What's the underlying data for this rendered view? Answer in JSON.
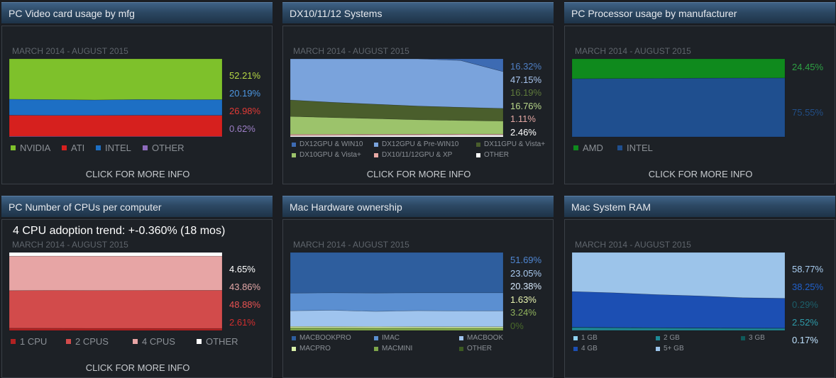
{
  "panels": [
    {
      "id": "video",
      "title": "PC Video card usage by mfg",
      "period": "MARCH 2014 - AUGUST 2015",
      "more_info": "CLICK FOR MORE INFO",
      "legend_size": "large",
      "legend_cols": 4,
      "legend_x": [
        0,
        72,
        120,
        186
      ],
      "percent_labels": [
        {
          "text": "52.21%",
          "color": "#b6d845"
        },
        {
          "text": "20.19%",
          "color": "#4c96e0"
        },
        {
          "text": "26.98%",
          "color": "#e03a36"
        },
        {
          "text": "0.62%",
          "color": "#9d7fc6"
        }
      ],
      "legend": [
        {
          "label": "NVIDIA",
          "color": "#7ec12b"
        },
        {
          "label": "ATI",
          "color": "#d6201e"
        },
        {
          "label": "INTEL",
          "color": "#1d6fc4"
        },
        {
          "label": "OTHER",
          "color": "#8e6bbd"
        }
      ]
    },
    {
      "id": "dx",
      "title": "DX10/11/12 Systems",
      "period": "MARCH 2014 - AUGUST 2015",
      "more_info": "CLICK FOR MORE INFO",
      "legend_size": "small",
      "legend_cols": 3,
      "legend_x": [
        0,
        116,
        260
      ],
      "percent_labels": [
        {
          "text": "16.32%",
          "color": "#4f7fc4"
        },
        {
          "text": "47.15%",
          "color": "#a9c6ef"
        },
        {
          "text": "16.19%",
          "color": "#5f7a3c"
        },
        {
          "text": "16.76%",
          "color": "#b9d88a"
        },
        {
          "text": "1.11%",
          "color": "#e2a6a2"
        },
        {
          "text": "2.46%",
          "color": "#ffffff"
        }
      ],
      "legend": [
        {
          "label": "DX12GPU & WIN10",
          "color": "#3d6bb3"
        },
        {
          "label": "DX12GPU & Pre-WIN10",
          "color": "#7aa3dc"
        },
        {
          "label": "DX11GPU & Vista+",
          "color": "#4a5e2c"
        },
        {
          "label": "DX10GPU & Vista+",
          "color": "#9cc36b"
        },
        {
          "label": "DX10/11/12GPU & XP",
          "color": "#e8a9a5"
        },
        {
          "label": "OTHER",
          "color": "#ffffff"
        }
      ]
    },
    {
      "id": "cpu-mfg",
      "title": "PC Processor usage by manufacturer",
      "period": "MARCH 2014 - AUGUST 2015",
      "more_info": "CLICK FOR MORE INFO",
      "legend_size": "large",
      "legend_cols": 2,
      "legend_x": [
        0,
        62
      ],
      "percent_labels": [
        {
          "text": "24.45%",
          "color": "#2ea043"
        },
        {
          "text": "75.55%",
          "color": "#224e86"
        }
      ],
      "legend": [
        {
          "label": "AMD",
          "color": "#0f8a1d"
        },
        {
          "label": "INTEL",
          "color": "#1f4f8f"
        }
      ]
    },
    {
      "id": "cpus",
      "title": "PC Number of CPUs per computer",
      "trend": "4 CPU adoption trend: +-0.360% (18 mos)",
      "period": "MARCH 2014 - AUGUST 2015",
      "more_info": "CLICK FOR MORE INFO",
      "legend_size": "large",
      "legend_cols": 4,
      "legend_x": [
        0,
        78,
        172,
        262
      ],
      "percent_labels": [
        {
          "text": "4.65%",
          "color": "#ffffff"
        },
        {
          "text": "43.86%",
          "color": "#e3a8a8"
        },
        {
          "text": "48.88%",
          "color": "#e85252"
        },
        {
          "text": "2.61%",
          "color": "#d12f2f"
        }
      ],
      "legend": [
        {
          "label": "1 CPU",
          "color": "#b22222"
        },
        {
          "label": "2 CPUS",
          "color": "#d24b4b"
        },
        {
          "label": "4 CPUS",
          "color": "#e7a5a5"
        },
        {
          "label": "OTHER",
          "color": "#ffffff"
        }
      ]
    },
    {
      "id": "mac-hw",
      "title": "Mac Hardware ownership",
      "period": "MARCH 2014 - AUGUST 2015",
      "legend_size": "small",
      "legend_cols": 3,
      "legend_x": [
        0,
        116,
        236
      ],
      "percent_labels": [
        {
          "text": "51.69%",
          "color": "#4f86d1"
        },
        {
          "text": "23.05%",
          "color": "#a9c9ef"
        },
        {
          "text": "20.38%",
          "color": "#d6e8fb"
        },
        {
          "text": "1.63%",
          "color": "#e8f4b0"
        },
        {
          "text": "3.24%",
          "color": "#8fb15c"
        },
        {
          "text": "0%",
          "color": "#4a6a2a"
        }
      ],
      "legend": [
        {
          "label": "MACBOOKPRO",
          "color": "#2e5e9e"
        },
        {
          "label": "IMAC",
          "color": "#5b8fd1"
        },
        {
          "label": "MACBOOK",
          "color": "#9fc4ee"
        },
        {
          "label": "MACPRO",
          "color": "#d8efa8"
        },
        {
          "label": "MACMINI",
          "color": "#7ea64a"
        },
        {
          "label": "OTHER",
          "color": "#3c5a22"
        }
      ]
    },
    {
      "id": "mac-ram",
      "title": "Mac System RAM",
      "period": "MARCH 2014 - AUGUST 2015",
      "legend_size": "small",
      "legend_cols": 3,
      "legend_x": [
        0,
        116,
        236
      ],
      "percent_labels": [
        {
          "text": "58.77%",
          "color": "#a9cdf0"
        },
        {
          "text": "38.25%",
          "color": "#2160c9"
        },
        {
          "text": "0.29%",
          "color": "#1d5f6a"
        },
        {
          "text": "2.52%",
          "color": "#2e9aa8"
        },
        {
          "text": "0.17%",
          "color": "#bfe3ff"
        }
      ],
      "legend": [
        {
          "label": "1 GB",
          "color": "#8fd1f0"
        },
        {
          "label": "2 GB",
          "color": "#1d8a96"
        },
        {
          "label": "3 GB",
          "color": "#0f5a5a"
        },
        {
          "label": "4 GB",
          "color": "#1c4fb3"
        },
        {
          "label": "5+ GB",
          "color": "#9cc4ea"
        }
      ]
    }
  ],
  "chart_data": [
    {
      "type": "area",
      "title": "PC Video card usage by mfg",
      "x_range": [
        "MARCH 2014",
        "AUGUST 2015"
      ],
      "stack_order": [
        "OTHER",
        "ATI",
        "INTEL",
        "NVIDIA"
      ],
      "series": [
        {
          "name": "OTHER",
          "color": "#8e6bbd",
          "values": [
            0.8,
            0.7,
            0.6,
            0.6,
            0.6,
            0.62
          ]
        },
        {
          "name": "ATI",
          "color": "#d6201e",
          "values": [
            27,
            26.8,
            26.9,
            27.1,
            27.0,
            26.98
          ]
        },
        {
          "name": "INTEL",
          "color": "#1d6fc4",
          "values": [
            20.5,
            20.3,
            19.8,
            20.2,
            20.1,
            20.19
          ]
        },
        {
          "name": "NVIDIA",
          "color": "#7ec12b",
          "values": [
            51.7,
            52.2,
            52.7,
            52.1,
            52.3,
            52.21
          ]
        }
      ],
      "ylim": [
        0,
        100
      ]
    },
    {
      "type": "area",
      "title": "DX10/11/12 Systems",
      "x_range": [
        "MARCH 2014",
        "AUGUST 2015"
      ],
      "stack_order": [
        "OTHER",
        "DX10/11/12GPU & XP",
        "DX10GPU & Vista+",
        "DX11GPU & Vista+",
        "DX12GPU & Pre-WIN10",
        "DX12GPU & WIN10"
      ],
      "series": [
        {
          "name": "OTHER",
          "color": "#ffffff",
          "values": [
            1.5,
            1.7,
            2.0,
            2.2,
            2.4,
            2.46
          ]
        },
        {
          "name": "DX10/11/12GPU & XP",
          "color": "#e8a9a5",
          "values": [
            1.8,
            1.6,
            1.4,
            1.3,
            1.2,
            1.11
          ]
        },
        {
          "name": "DX10GPU & Vista+",
          "color": "#9cc36b",
          "values": [
            23,
            21.5,
            20,
            18.5,
            17.5,
            16.76
          ]
        },
        {
          "name": "DX11GPU & Vista+",
          "color": "#4a5e2c",
          "values": [
            21,
            19.5,
            18.5,
            17.5,
            16.8,
            16.19
          ]
        },
        {
          "name": "DX12GPU & Pre-WIN10",
          "color": "#7aa3dc",
          "values": [
            52.7,
            55.7,
            58.1,
            60.5,
            60.1,
            47.15
          ]
        },
        {
          "name": "DX12GPU & WIN10",
          "color": "#3d6bb3",
          "values": [
            0,
            0,
            0,
            0,
            2.0,
            16.32
          ]
        }
      ],
      "ylim": [
        0,
        100
      ]
    },
    {
      "type": "area",
      "title": "PC Processor usage by manufacturer",
      "x_range": [
        "MARCH 2014",
        "AUGUST 2015"
      ],
      "stack_order": [
        "INTEL",
        "AMD"
      ],
      "series": [
        {
          "name": "INTEL",
          "color": "#1f4f8f",
          "values": [
            74.5,
            74.8,
            75.0,
            75.3,
            75.5,
            75.55
          ]
        },
        {
          "name": "AMD",
          "color": "#0f8a1d",
          "values": [
            25.5,
            25.2,
            25.0,
            24.7,
            24.5,
            24.45
          ]
        }
      ],
      "ylim": [
        0,
        100
      ]
    },
    {
      "type": "area",
      "title": "PC Number of CPUs per computer",
      "x_range": [
        "MARCH 2014",
        "AUGUST 2015"
      ],
      "stack_order": [
        "1 CPU",
        "2 CPUS",
        "4 CPUS",
        "OTHER"
      ],
      "series": [
        {
          "name": "1 CPU",
          "color": "#b22222",
          "values": [
            2.9,
            2.8,
            2.7,
            2.7,
            2.6,
            2.61
          ]
        },
        {
          "name": "2 CPUS",
          "color": "#d24b4b",
          "values": [
            48.2,
            48.6,
            48.5,
            48.7,
            48.9,
            48.88
          ]
        },
        {
          "name": "4 CPUS",
          "color": "#e7a5a5",
          "values": [
            44.2,
            44.0,
            44.1,
            43.9,
            43.9,
            43.86
          ]
        },
        {
          "name": "OTHER",
          "color": "#ffffff",
          "values": [
            4.7,
            4.6,
            4.7,
            4.7,
            4.6,
            4.65
          ]
        }
      ],
      "ylim": [
        0,
        100
      ]
    },
    {
      "type": "area",
      "title": "Mac Hardware ownership",
      "x_range": [
        "MARCH 2014",
        "AUGUST 2015"
      ],
      "stack_order": [
        "OTHER",
        "MACMINI",
        "MACPRO",
        "MACBOOK",
        "IMAC",
        "MACBOOKPRO"
      ],
      "series": [
        {
          "name": "OTHER",
          "color": "#3c5a22",
          "values": [
            0,
            0,
            0,
            0,
            0,
            0
          ]
        },
        {
          "name": "MACMINI",
          "color": "#7ea64a",
          "values": [
            3.5,
            3.4,
            3.3,
            3.3,
            3.2,
            3.24
          ]
        },
        {
          "name": "MACPRO",
          "color": "#d8efa8",
          "values": [
            1.8,
            1.7,
            1.7,
            1.6,
            1.6,
            1.63
          ]
        },
        {
          "name": "MACBOOK",
          "color": "#9fc4ee",
          "values": [
            20,
            20.8,
            19.5,
            20.6,
            20.2,
            20.38
          ]
        },
        {
          "name": "IMAC",
          "color": "#5b8fd1",
          "values": [
            22.7,
            22.4,
            23.6,
            22.8,
            23.3,
            23.05
          ]
        },
        {
          "name": "MACBOOKPRO",
          "color": "#2e5e9e",
          "values": [
            52,
            51.7,
            51.9,
            51.7,
            51.7,
            51.69
          ]
        }
      ],
      "ylim": [
        0,
        100
      ]
    },
    {
      "type": "area",
      "title": "Mac System RAM",
      "x_range": [
        "MARCH 2014",
        "AUGUST 2015"
      ],
      "stack_order": [
        "1 GB",
        "2 GB",
        "3 GB",
        "4 GB",
        "5+ GB"
      ],
      "series": [
        {
          "name": "1 GB",
          "color": "#8fd1f0",
          "values": [
            0.3,
            0.25,
            0.2,
            0.2,
            0.18,
            0.17
          ]
        },
        {
          "name": "2 GB",
          "color": "#1d8a96",
          "values": [
            3.5,
            3.2,
            3.0,
            2.8,
            2.6,
            2.52
          ]
        },
        {
          "name": "3 GB",
          "color": "#0f5a5a",
          "values": [
            0.4,
            0.35,
            0.33,
            0.31,
            0.3,
            0.29
          ]
        },
        {
          "name": "4 GB",
          "color": "#1c4fb3",
          "values": [
            45.8,
            44.5,
            42.5,
            41,
            39,
            38.25
          ]
        },
        {
          "name": "5+ GB",
          "color": "#9cc4ea",
          "values": [
            50,
            51.7,
            53.97,
            55.69,
            57.92,
            58.77
          ]
        }
      ],
      "ylim": [
        0,
        100
      ]
    }
  ]
}
